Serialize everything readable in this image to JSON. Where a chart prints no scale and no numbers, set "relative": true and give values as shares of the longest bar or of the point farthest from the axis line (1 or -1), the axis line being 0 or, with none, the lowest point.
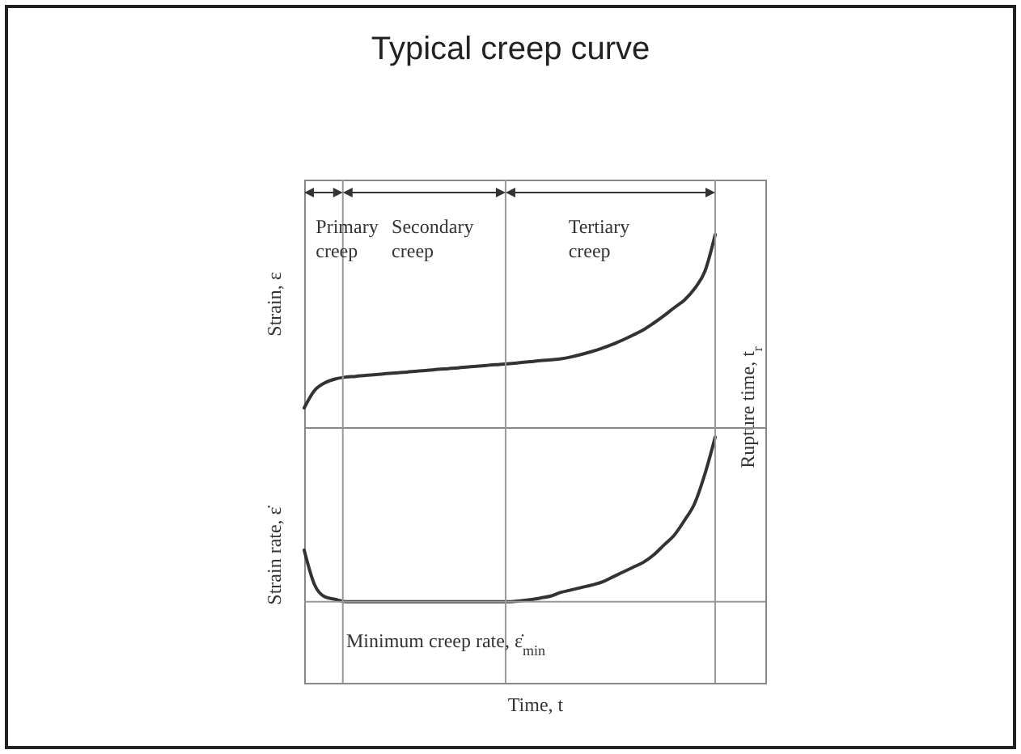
{
  "chart_data": [
    {
      "type": "line",
      "title": "Typical creep curve",
      "ylabel": "Strain, ε",
      "relative": true,
      "color": "#333333",
      "categories": [
        null,
        null,
        null,
        null,
        null,
        null,
        null,
        null,
        null,
        null,
        null,
        null,
        null,
        null,
        null,
        null,
        null,
        null,
        null,
        null,
        null,
        null,
        null,
        null,
        null,
        null,
        null,
        null,
        null,
        null,
        null,
        null,
        null,
        null,
        null,
        null,
        null,
        null,
        null,
        null,
        null
      ],
      "values": [
        0.1,
        0.19,
        0.23,
        0.25,
        0.26,
        0.264,
        0.269,
        0.273,
        0.278,
        0.282,
        0.286,
        0.291,
        0.295,
        0.3,
        0.304,
        0.308,
        0.313,
        0.317,
        0.322,
        0.326,
        0.33,
        0.335,
        0.34,
        0.346,
        0.35,
        0.355,
        0.365,
        0.378,
        0.393,
        0.41,
        0.43,
        0.453,
        0.478,
        0.505,
        0.54,
        0.578,
        0.62,
        0.66,
        0.72,
        0.81,
        1.0
      ],
      "annotations": [
        "Primary creep",
        "Secondary creep",
        "Tertiary creep",
        "Rupture time, t$_{r}$"
      ]
    },
    {
      "type": "line",
      "ylabel": "Strain rate, ε̇",
      "xlabel": "Time, t",
      "relative": true,
      "color": "#333333",
      "categories": [
        null,
        null,
        null,
        null,
        null,
        null,
        null,
        null,
        null,
        null,
        null,
        null,
        null,
        null,
        null,
        null,
        null,
        null,
        null,
        null,
        null,
        null,
        null,
        null,
        null,
        null,
        null,
        null,
        null,
        null,
        null,
        null,
        null,
        null,
        null,
        null,
        null,
        null,
        null,
        null,
        null
      ],
      "values": [
        0.54,
        0.4,
        0.35,
        0.34,
        0.33,
        0.33,
        0.33,
        0.33,
        0.33,
        0.33,
        0.33,
        0.33,
        0.33,
        0.33,
        0.33,
        0.33,
        0.33,
        0.33,
        0.33,
        0.33,
        0.33,
        0.333,
        0.338,
        0.345,
        0.353,
        0.368,
        0.378,
        0.388,
        0.398,
        0.41,
        0.43,
        0.45,
        0.47,
        0.49,
        0.52,
        0.56,
        0.6,
        0.66,
        0.73,
        0.85,
        1.0
      ],
      "ref_lines": [
        {
          "axis": "y",
          "value": 0.33,
          "color": "#999999",
          "label": "Minimum creep rate, ε̇$_{min}$"
        }
      ]
    }
  ]
}
